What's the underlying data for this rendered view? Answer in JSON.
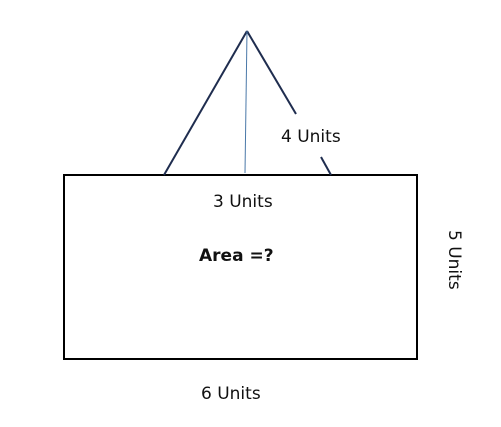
{
  "diagram": {
    "labels": {
      "slant_side": "4 Units",
      "triangle_base": "3 Units",
      "question": "Area =?",
      "rect_height": "5 Units",
      "rect_width": "6 Units"
    },
    "colors": {
      "triangle_stroke": "#1f2d4f",
      "height_line": "#4a78a8",
      "rectangle_stroke": "#000000",
      "text": "#111111",
      "background": "#ffffff"
    }
  }
}
